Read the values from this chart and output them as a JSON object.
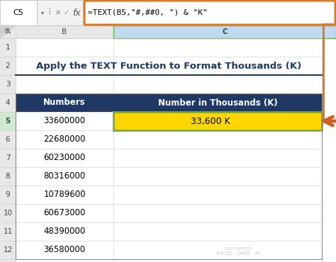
{
  "title": "Apply the TEXT Function to Format Thousands (K)",
  "formula_bar_text": "=TEXT(B5,\"#,##0, \") & \"K\"",
  "cell_ref": "C5",
  "col_header_1": "Numbers",
  "col_header_2": "Number in Thousands (K)",
  "numbers": [
    "33600000",
    "22680000",
    "60230000",
    "80316000",
    "10789600",
    "60673000",
    "48390000",
    "36580000"
  ],
  "highlighted_value": "33,600 K",
  "header_bg": "#1F3864",
  "header_fg": "#FFFFFF",
  "highlight_bg": "#FFD700",
  "highlight_fg": "#000000",
  "title_color": "#1F3864",
  "orange_color": "#E07820",
  "arrow_color": "#CC6020",
  "green_border": "#70AD47",
  "gray_bg": "#E8E8E8",
  "white": "#FFFFFF",
  "light_gray": "#F2F2F2",
  "grid_color": "#C8C8C8",
  "col_header_selected": "#C0D8F0",
  "row_selected_bg": "#E8F0E8"
}
